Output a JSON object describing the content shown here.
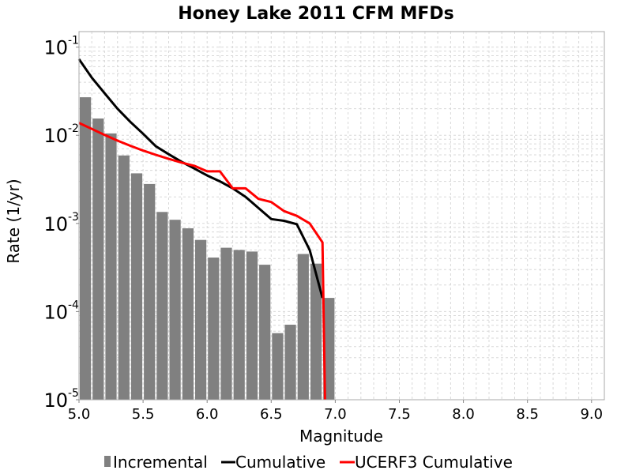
{
  "chart_data": {
    "type": "bar",
    "title": "Honey Lake 2011 CFM MFDs",
    "xlabel": "Magnitude",
    "ylabel": "Rate (1/yr)",
    "xlim": [
      5.0,
      9.1
    ],
    "ylim": [
      1e-05,
      0.15
    ],
    "y_scale": "log",
    "grid": true,
    "legend_position": "bottom",
    "x_ticks": [
      "5.0",
      "5.5",
      "6.0",
      "6.5",
      "7.0",
      "7.5",
      "8.0",
      "8.5",
      "9.0"
    ],
    "y_ticks": [
      {
        "base": "10",
        "exp": "-1",
        "value": 0.1
      },
      {
        "base": "10",
        "exp": "-2",
        "value": 0.01
      },
      {
        "base": "10",
        "exp": "-3",
        "value": 0.001
      },
      {
        "base": "10",
        "exp": "-4",
        "value": 0.0001
      },
      {
        "base": "10",
        "exp": "-5",
        "value": 1e-05
      }
    ],
    "series": [
      {
        "name": "Incremental",
        "kind": "bar",
        "color": "#808080",
        "bin_width": 0.1,
        "x": [
          5.05,
          5.15,
          5.25,
          5.35,
          5.45,
          5.55,
          5.65,
          5.75,
          5.85,
          5.95,
          6.05,
          6.15,
          6.25,
          6.35,
          6.45,
          6.55,
          6.65,
          6.75,
          6.85,
          6.95
        ],
        "values": [
          0.027,
          0.0155,
          0.0105,
          0.0059,
          0.0037,
          0.0028,
          0.00135,
          0.0011,
          0.00088,
          0.00065,
          0.00041,
          0.00053,
          0.0005,
          0.00048,
          0.00034,
          5.7e-05,
          7.1e-05,
          0.00045,
          0.00035,
          0.000143
        ]
      },
      {
        "name": "Cumulative",
        "kind": "line",
        "color": "#000000",
        "x": [
          5.0,
          5.1,
          5.2,
          5.3,
          5.4,
          5.5,
          5.6,
          5.7,
          5.8,
          5.9,
          6.0,
          6.1,
          6.2,
          6.3,
          6.4,
          6.5,
          6.6,
          6.7,
          6.8,
          6.9
        ],
        "values": [
          0.073,
          0.045,
          0.03,
          0.02,
          0.0142,
          0.0104,
          0.0075,
          0.0061,
          0.005,
          0.0042,
          0.0035,
          0.003,
          0.0025,
          0.002,
          0.0015,
          0.00112,
          0.00107,
          0.00098,
          0.0005,
          0.000143
        ]
      },
      {
        "name": "UCERF3 Cumulative",
        "kind": "line",
        "color": "#ff0000",
        "x": [
          5.0,
          5.1,
          5.2,
          5.3,
          5.4,
          5.5,
          5.6,
          5.7,
          5.8,
          5.9,
          6.0,
          6.1,
          6.2,
          6.3,
          6.4,
          6.5,
          6.6,
          6.7,
          6.8,
          6.9,
          6.9,
          6.92
        ],
        "values": [
          0.0138,
          0.0118,
          0.0101,
          0.0087,
          0.0076,
          0.0067,
          0.006,
          0.0054,
          0.0049,
          0.0045,
          0.0039,
          0.0039,
          0.0025,
          0.0025,
          0.0019,
          0.00175,
          0.00138,
          0.00122,
          0.001,
          0.00061,
          0.00061,
          1e-05
        ]
      }
    ]
  }
}
